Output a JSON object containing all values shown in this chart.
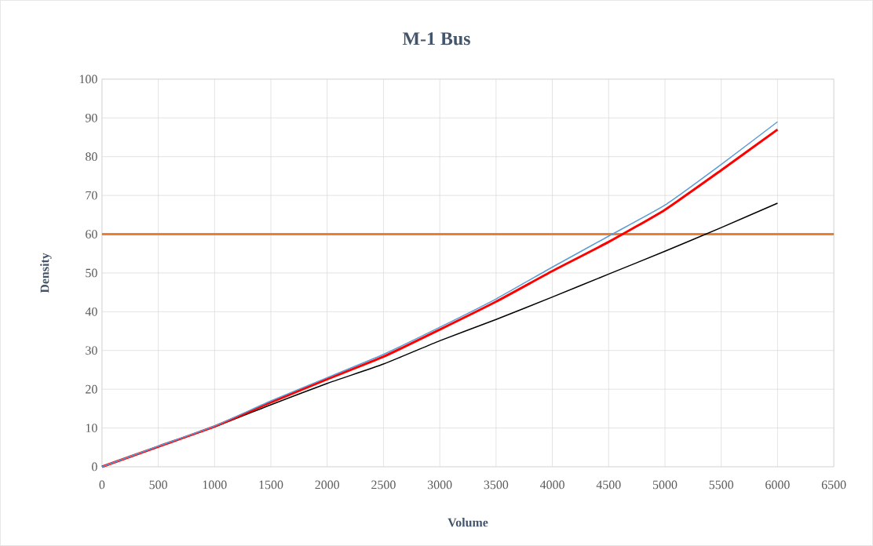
{
  "chart_data": {
    "type": "line",
    "title": "M-1 Bus",
    "xlabel": "Volume",
    "ylabel": "Density",
    "x": [
      0,
      500,
      1000,
      1500,
      2000,
      2500,
      3000,
      3500,
      4000,
      4500,
      5000,
      5500,
      6000
    ],
    "series": [
      {
        "color": "#5b9bd5",
        "values": [
          0,
          5.3,
          10.5,
          17,
          23,
          29,
          36,
          43.3,
          51.5,
          59.5,
          67.5,
          78,
          89
        ]
      },
      {
        "color": "#ff0000",
        "values": [
          0,
          5.2,
          10.4,
          16.6,
          22.6,
          28.4,
          35.4,
          42.6,
          50.5,
          58,
          66.3,
          76.5,
          87
        ]
      },
      {
        "color": "#000000",
        "values": [
          0,
          5.2,
          10.3,
          16,
          21.5,
          26.5,
          32.5,
          38,
          43.8,
          49.7,
          55.6,
          61.7,
          68
        ]
      }
    ],
    "ref_lines": [
      {
        "axis": "y",
        "value": 60,
        "color": "#ed7d31"
      }
    ],
    "xlim": [
      0,
      6500
    ],
    "ylim": [
      0,
      100
    ],
    "xticks": [
      0,
      500,
      1000,
      1500,
      2000,
      2500,
      3000,
      3500,
      4000,
      4500,
      5000,
      5500,
      6000,
      6500
    ],
    "yticks": [
      0,
      10,
      20,
      30,
      40,
      50,
      60,
      70,
      80,
      90,
      100
    ],
    "grid": true,
    "marker": "none",
    "line_style": "solid"
  }
}
